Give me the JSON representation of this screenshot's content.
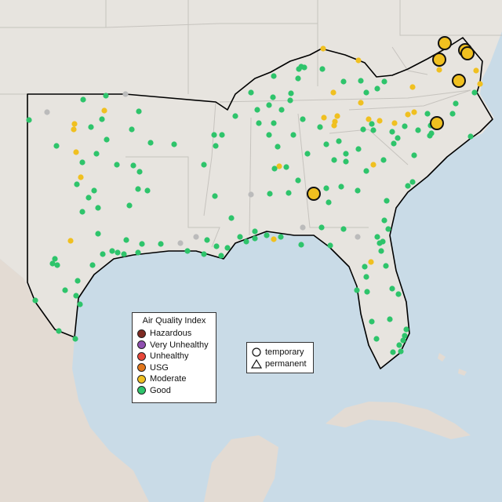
{
  "legend": {
    "title": "Air Quality Index",
    "items": [
      {
        "label": "Hazardous",
        "color": "#7e2a22"
      },
      {
        "label": "Very Unhealthy",
        "color": "#8f4fb0"
      },
      {
        "label": "Unhealthy",
        "color": "#e8473a"
      },
      {
        "label": "USG",
        "color": "#e2771b"
      },
      {
        "label": "Moderate",
        "color": "#f0c020"
      },
      {
        "label": "Good",
        "color": "#2ec46b"
      }
    ]
  },
  "shape_legend": {
    "items": [
      {
        "label": "temporary",
        "shape": "circle-icon"
      },
      {
        "label": "permanent",
        "shape": "triangle-icon"
      }
    ]
  },
  "colors": {
    "water": "#c9dbe7",
    "land": "#e7e4df",
    "region_outline": "#000000",
    "no_data": "#bbbbbb"
  }
}
